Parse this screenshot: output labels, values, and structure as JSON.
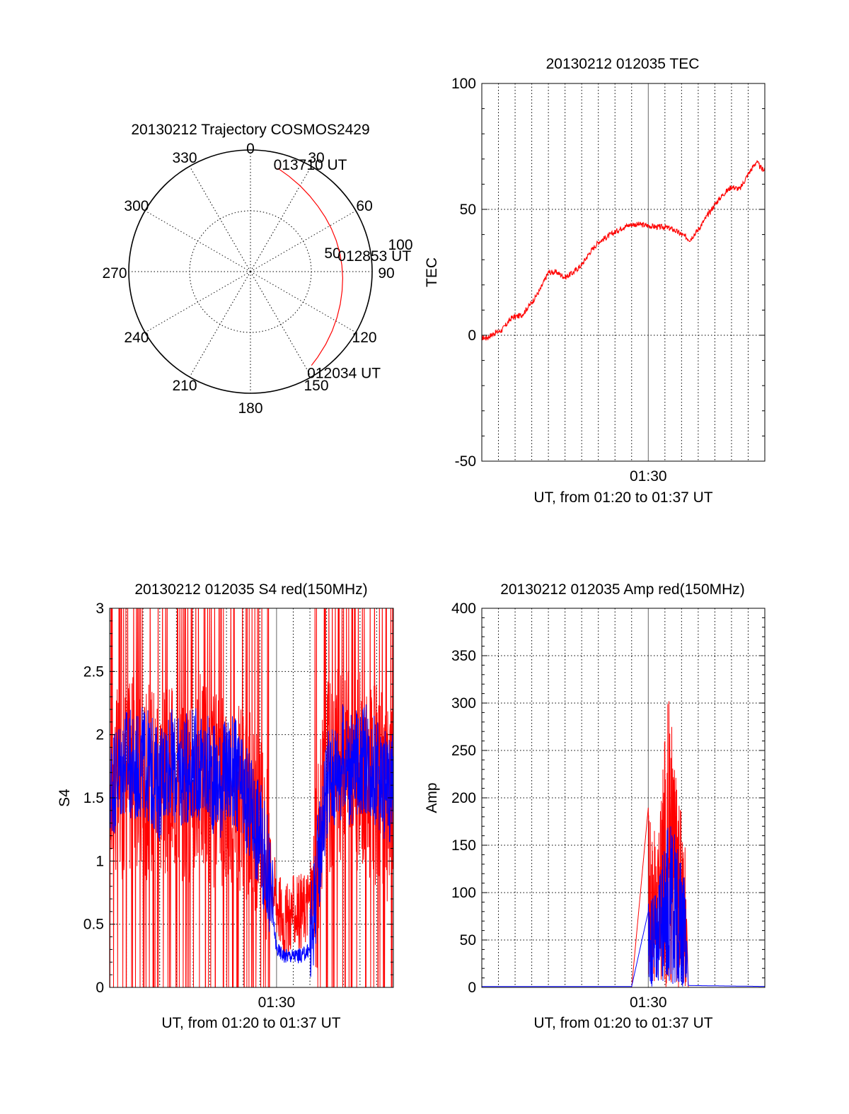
{
  "colors": {
    "red_series": "#ff0000",
    "blue_series": "#0000ff",
    "axis": "#000000",
    "grid": "#000000",
    "background": "#ffffff"
  },
  "chart_data": [
    {
      "id": "trajectory",
      "type": "polar",
      "title": "20130212 Trajectory COSMOS2429",
      "azimuth_labels": [
        "0",
        "30",
        "60",
        "90",
        "120",
        "150",
        "180",
        "210",
        "240",
        "270",
        "300",
        "330"
      ],
      "azimuth_values": [
        0,
        30,
        60,
        90,
        120,
        150,
        180,
        210,
        240,
        270,
        300,
        330
      ],
      "radial_labels": [
        "50",
        "100"
      ],
      "radial_values": [
        50,
        100
      ],
      "radial_max": 100,
      "grid": true,
      "trajectory": {
        "azimuth": [
          14.8,
          22,
          30,
          38,
          46,
          54,
          62,
          70,
          78,
          86,
          94,
          102,
          110,
          118,
          126,
          134,
          142,
          147
        ],
        "radius": [
          87.9,
          84.5,
          81.5,
          79,
          77.2,
          76,
          75.3,
          75,
          75,
          75.3,
          76,
          77,
          78.5,
          80.5,
          83,
          86,
          89.5,
          92
        ]
      },
      "annotations": [
        {
          "text": "013710 UT",
          "azimuth": 14.8,
          "radius": 87.9
        },
        {
          "text": "012853 UT",
          "azimuth": 86.5,
          "radius": 75.3
        },
        {
          "text": "012034 UT",
          "azimuth": 147,
          "radius": 92
        }
      ]
    },
    {
      "id": "tec",
      "type": "line",
      "title": "20130212 012035 TEC",
      "xlabel": "UT, from 01:20 to 01:37 UT",
      "ylabel": "TEC",
      "ylim": [
        -50,
        100
      ],
      "yticks": [
        -50,
        0,
        50,
        100
      ],
      "xlim": [
        0,
        17
      ],
      "xtick_labels": [
        "01:30"
      ],
      "xtick_values": [
        10
      ],
      "grid": true,
      "series": [
        {
          "color": "#ff0000",
          "x": [
            0.3,
            0.8,
            1.2,
            1.8,
            2.4,
            3.0,
            3.5,
            4.0,
            4.5,
            5.0,
            5.5,
            6.0,
            6.5,
            7.0,
            7.5,
            8.0,
            8.5,
            9.0,
            9.5,
            10.0,
            10.5,
            11.0,
            11.5,
            12.0,
            12.5,
            13.0,
            13.5,
            14.0,
            14.5,
            15.0,
            15.5,
            16.0,
            16.5,
            16.8,
            17.0
          ],
          "y": [
            -1,
            1,
            2,
            7,
            8,
            13,
            18,
            25,
            25,
            23,
            25,
            28,
            33,
            37,
            39,
            41,
            43,
            44,
            44,
            43.5,
            43,
            43,
            42,
            40,
            38,
            42,
            47,
            52,
            56,
            59,
            58,
            64,
            69,
            66,
            66
          ]
        }
      ]
    },
    {
      "id": "s4",
      "type": "line",
      "title": "20130212 012035 S4 red(150MHz)",
      "xlabel": "UT, from 01:20 to 01:37 UT",
      "ylabel": "S4",
      "ylim": [
        0,
        3
      ],
      "yticks": [
        0,
        0.5,
        1,
        1.5,
        2,
        2.5,
        3
      ],
      "ytick_labels": [
        "0",
        "0.5",
        "1",
        "1.5",
        "2",
        "2.5",
        "3"
      ],
      "xlim": [
        0,
        17
      ],
      "xtick_labels": [
        "01:30"
      ],
      "xtick_values": [
        10
      ],
      "grid": true,
      "series": [
        {
          "color": "#ff0000",
          "x": [
            0,
            0.5,
            1,
            1.5,
            2,
            2.5,
            3,
            3.5,
            4,
            4.5,
            5,
            5.5,
            6,
            6.5,
            7,
            7.5,
            8,
            8.5,
            9,
            9.5,
            10,
            10.5,
            11,
            11.5,
            12,
            12.5,
            13,
            13.5,
            14,
            14.5,
            15,
            15.5,
            16,
            16.5,
            17
          ],
          "y": [
            1.6,
            1.6,
            1.7,
            1.7,
            1.6,
            1.7,
            1.7,
            1.6,
            1.7,
            1.6,
            1.6,
            1.7,
            1.6,
            1.5,
            1.6,
            1.6,
            1.4,
            1.4,
            1.2,
            1.0,
            0.7,
            0.5,
            0.6,
            0.6,
            0.7,
            1.0,
            1.7,
            1.7,
            1.8,
            1.7,
            1.7,
            1.6,
            1.6,
            1.5,
            1.4
          ]
        },
        {
          "color": "#0000ff",
          "x": [
            0,
            0.5,
            1,
            1.5,
            2,
            2.5,
            3,
            3.5,
            4,
            4.5,
            5,
            5.5,
            6,
            6.5,
            7,
            7.5,
            8,
            8.5,
            9,
            9.5,
            10,
            10.5,
            11,
            11.5,
            12,
            12.5,
            13,
            13.5,
            14,
            14.5,
            15,
            15.5,
            16,
            16.5,
            17
          ],
          "y": [
            1.6,
            1.7,
            1.8,
            1.7,
            1.8,
            1.7,
            1.6,
            1.8,
            1.7,
            1.7,
            1.8,
            1.7,
            1.7,
            1.6,
            1.7,
            1.7,
            1.5,
            1.4,
            1.2,
            0.9,
            0.3,
            0.25,
            0.25,
            0.25,
            0.3,
            1.0,
            1.6,
            1.7,
            1.8,
            1.7,
            1.8,
            1.8,
            1.7,
            1.6,
            1.6
          ]
        }
      ]
    },
    {
      "id": "amp",
      "type": "line",
      "title": "20130212 012035 Amp red(150MHz)",
      "xlabel": "UT, from 01:20 to 01:37 UT",
      "ylabel": "Amp",
      "ylim": [
        0,
        400
      ],
      "yticks": [
        0,
        50,
        100,
        150,
        200,
        250,
        300,
        350,
        400
      ],
      "xlim": [
        0,
        17
      ],
      "xtick_labels": [
        "01:30"
      ],
      "xtick_values": [
        10
      ],
      "grid": true,
      "series": [
        {
          "color": "#ff0000",
          "x": [
            0,
            9,
            10.0,
            10.3,
            10.6,
            10.9,
            11.2,
            11.5,
            11.8,
            12.2,
            12.4,
            17
          ],
          "y": [
            0,
            0,
            190,
            160,
            150,
            230,
            308,
            250,
            200,
            150,
            0,
            0
          ]
        },
        {
          "color": "#0000ff",
          "x": [
            0,
            9,
            10.0,
            10.3,
            10.6,
            10.9,
            11.2,
            11.5,
            11.8,
            12.2,
            12.4,
            17
          ],
          "y": [
            1,
            1,
            80,
            90,
            100,
            120,
            150,
            140,
            120,
            100,
            2,
            1
          ]
        }
      ]
    }
  ]
}
